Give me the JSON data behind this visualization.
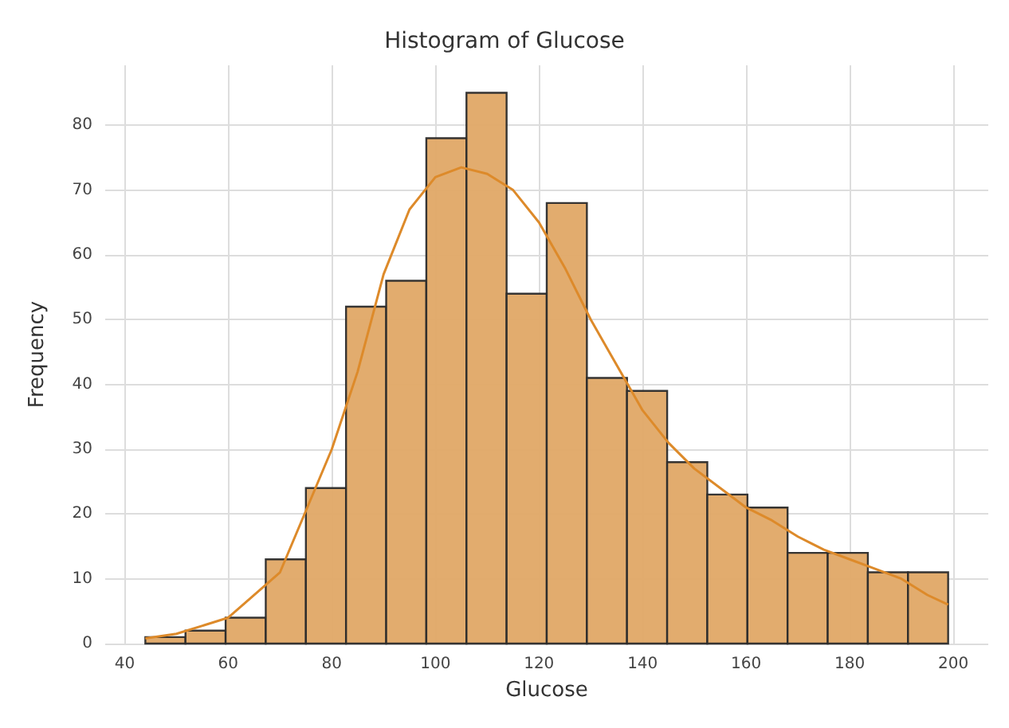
{
  "chart_data": {
    "type": "histogram",
    "title": "Histogram of Glucose",
    "xlabel": "Glucose",
    "ylabel": "Frequency",
    "bins": [
      44,
      51.75,
      59.5,
      67.25,
      75,
      82.75,
      90.5,
      98.25,
      106,
      113.75,
      121.5,
      129.25,
      137,
      144.75,
      152.5,
      160.25,
      168,
      175.75,
      183.5,
      191.25,
      199
    ],
    "values": [
      1,
      2,
      4,
      13,
      24,
      52,
      56,
      78,
      85,
      54,
      68,
      41,
      39,
      28,
      23,
      21,
      14,
      14,
      11,
      11
    ],
    "color": "#e0a866",
    "series": [
      {
        "type": "line",
        "color": "#dd8a2a",
        "x": [
          44,
          50,
          60,
          70,
          80,
          85,
          90,
          95,
          100,
          105,
          110,
          115,
          120,
          125,
          130,
          135,
          140,
          145,
          150,
          155,
          160,
          165,
          170,
          175,
          180,
          185,
          190,
          195,
          199
        ],
        "values": [
          0.8,
          1.5,
          4,
          11,
          30,
          42,
          57,
          67,
          72,
          73.5,
          72.5,
          70,
          65,
          58,
          50,
          43,
          36,
          31,
          27,
          24,
          21,
          19,
          16.5,
          14.5,
          13,
          11.5,
          10,
          7.5,
          6
        ]
      }
    ],
    "xlim": [
      36.25,
      206.75
    ],
    "xticks": [
      40,
      60,
      80,
      100,
      120,
      140,
      160,
      180,
      200
    ],
    "ylim": [
      0,
      89.25
    ],
    "yticks": [
      0,
      10,
      20,
      30,
      40,
      50,
      60,
      70,
      80
    ],
    "grid": true
  }
}
